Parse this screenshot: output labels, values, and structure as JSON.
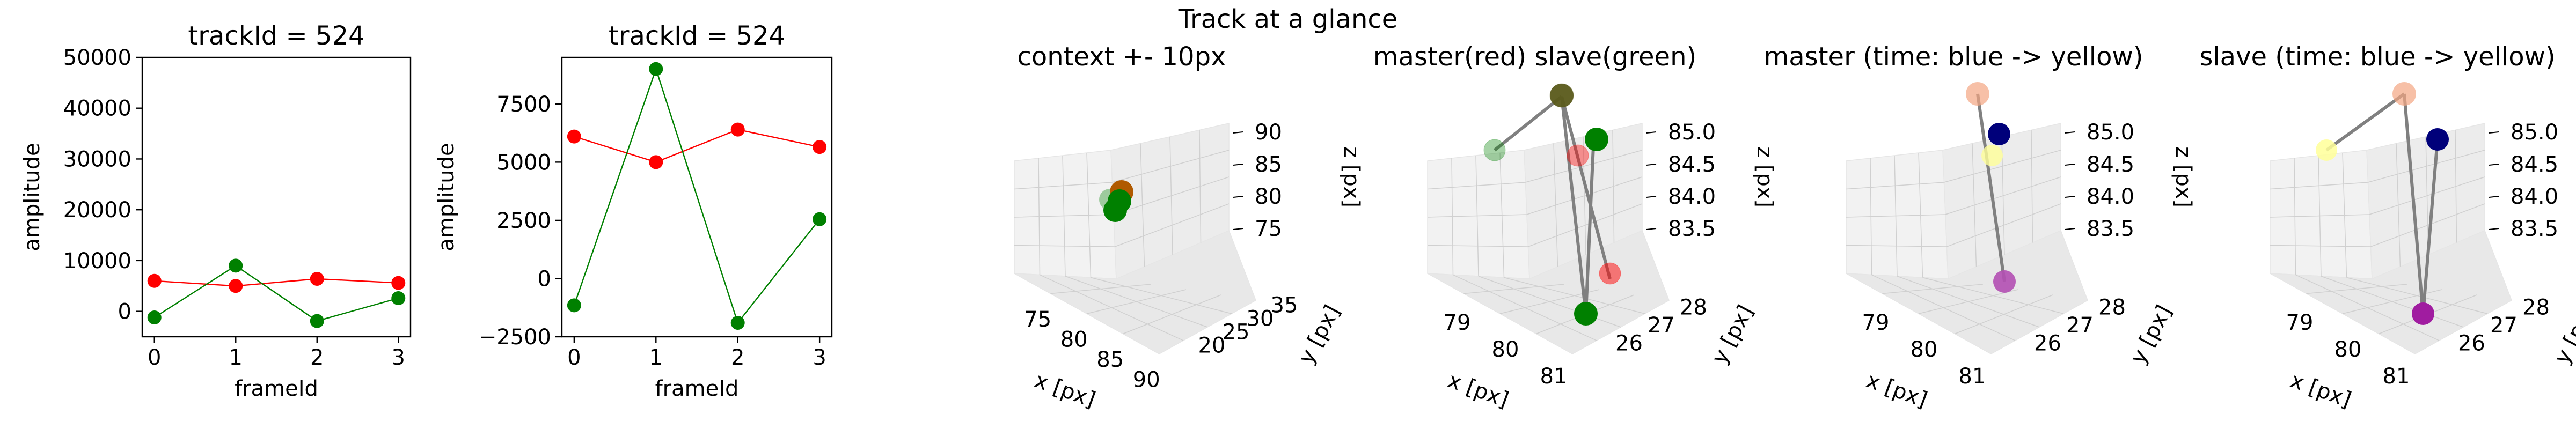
{
  "suptitle": "Track at a glance",
  "colors": {
    "red": "#ff0000",
    "green": "#008000",
    "conn_line": "#808080",
    "master_pts": [
      "#f4a582",
      "#00007a",
      "#ffff99",
      "#b34fb3"
    ],
    "slave_pts": [
      "#f4a582",
      "#00007a",
      "#ffff99",
      "#a01ca0"
    ]
  },
  "chart_data": [
    {
      "type": "line",
      "title": "trackId = 524",
      "xlabel": "frameId",
      "ylabel": "amplitude",
      "x": [
        0,
        1,
        2,
        3
      ],
      "xticks": [
        "0",
        "1",
        "2",
        "3"
      ],
      "yticks": [
        "0",
        "10000",
        "20000",
        "30000",
        "40000",
        "50000"
      ],
      "ylim": [
        -5000,
        50000
      ],
      "series": [
        {
          "color": "red",
          "values": [
            6000,
            5000,
            6400,
            5600
          ]
        },
        {
          "color": "green",
          "values": [
            -1200,
            9000,
            -1900,
            2600
          ]
        }
      ]
    },
    {
      "type": "line",
      "title": "trackId = 524",
      "xlabel": "frameId",
      "ylabel": "amplitude",
      "x": [
        0,
        1,
        2,
        3
      ],
      "xticks": [
        "0",
        "1",
        "2",
        "3"
      ],
      "yticks": [
        "−2500",
        "0",
        "2500",
        "5000",
        "7500"
      ],
      "ylim": [
        -2500,
        9500
      ],
      "series": [
        {
          "color": "red",
          "values": [
            6100,
            5000,
            6400,
            5650
          ]
        },
        {
          "color": "green",
          "values": [
            -1150,
            9000,
            -1900,
            2550
          ]
        }
      ]
    },
    {
      "type": "scatter",
      "title": "context +- 10px",
      "xlabel": "x [px]",
      "ylabel": "y [px]",
      "zlabel": "z [px]",
      "xticks": [
        "75",
        "80",
        "85",
        "90"
      ],
      "yticks": [
        "20",
        "25",
        "30",
        "35"
      ],
      "zticks": [
        "75",
        "80",
        "85",
        "90"
      ]
    },
    {
      "type": "scatter",
      "title": "master(red) slave(green)",
      "xlabel": "x [px]",
      "ylabel": "y [px]",
      "zlabel": "z [px]",
      "xticks": [
        "79",
        "80",
        "81"
      ],
      "yticks": [
        "26",
        "27",
        "28"
      ],
      "zticks": [
        "83.5",
        "84.0",
        "84.5",
        "85.0"
      ]
    },
    {
      "type": "scatter",
      "title": "master (time: blue -> yellow)",
      "xlabel": "x [px]",
      "ylabel": "y [px]",
      "zlabel": "z [px]",
      "xticks": [
        "79",
        "80",
        "81"
      ],
      "yticks": [
        "26",
        "27",
        "28"
      ],
      "zticks": [
        "83.5",
        "84.0",
        "84.5",
        "85.0"
      ]
    },
    {
      "type": "scatter",
      "title": "slave (time: blue -> yellow)",
      "xlabel": "x [px]",
      "ylabel": "y [px]",
      "zlabel": "z [px]",
      "xticks": [
        "79",
        "80",
        "81"
      ],
      "yticks": [
        "26",
        "27",
        "28"
      ],
      "zticks": [
        "83.5",
        "84.0",
        "84.5",
        "85.0"
      ]
    }
  ]
}
